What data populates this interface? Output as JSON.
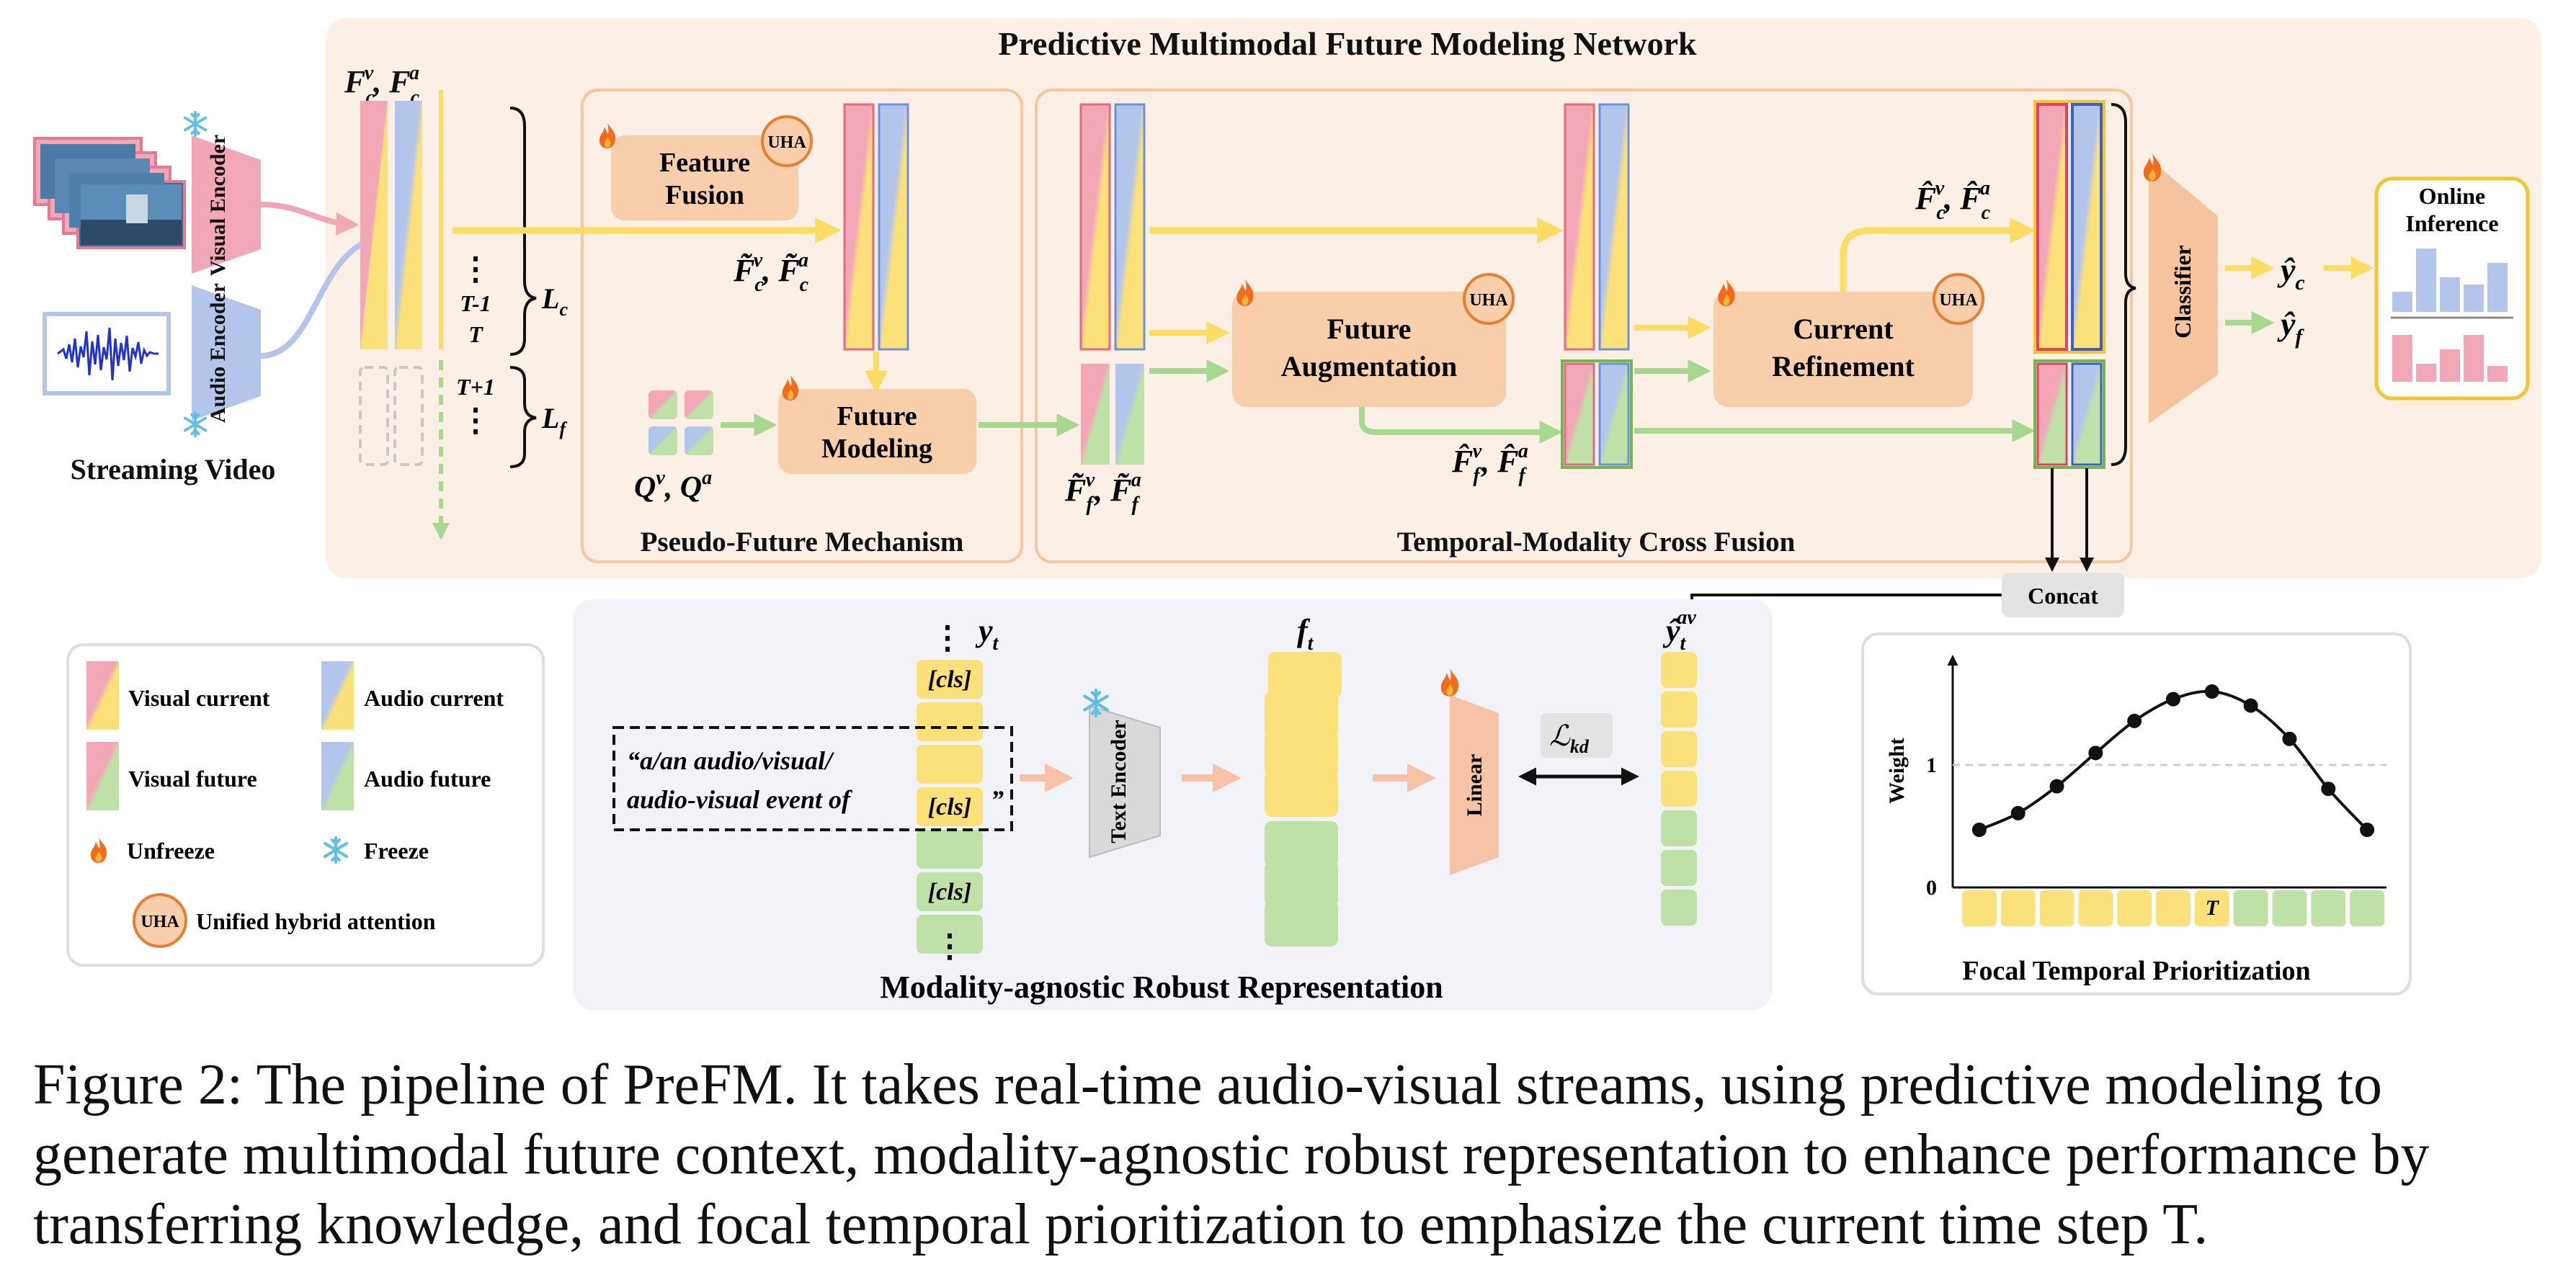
{
  "title": "Predictive Multimodal Future Modeling Network",
  "streaming_video_label": "Streaming Video",
  "visual_encoder_label": "Visual Encoder",
  "audio_encoder_label": "Audio Encoder",
  "feature_fusion_label": [
    "Feature",
    "Fusion"
  ],
  "future_modeling_label": [
    "Future",
    "Modeling"
  ],
  "future_augmentation_label": [
    "Future",
    "Augmentation"
  ],
  "current_refinement_label": [
    "Current",
    "Refinement"
  ],
  "uha_label": "UHA",
  "classifier_label": "Classifier",
  "online_inference_label": [
    "Online",
    "Inference"
  ],
  "pseudo_future_label": "Pseudo-Future Mechanism",
  "temporal_modality_label": "Temporal-Modality Cross Fusion",
  "concat_label": "Concat",
  "time_labels": {
    "t_minus_1": "T-1",
    "t": "T",
    "t_plus_1": "T+1"
  },
  "len_labels": {
    "lc": "L",
    "lc_sub": "c",
    "lf": "L",
    "lf_sub": "f"
  },
  "legend": {
    "visual_current": "Visual current",
    "audio_current": "Audio current",
    "visual_future": "Visual future",
    "audio_future": "Audio future",
    "unfreeze": "Unfreeze",
    "freeze": "Freeze",
    "uha": "Unified hybrid attention"
  },
  "mar": {
    "title": "Modality-agnostic Robust Representation",
    "cls_token": "[cls]",
    "prompt_lines": [
      "“a/an audio/visual/",
      "audio-visual event of",
      "”"
    ],
    "text_encoder": "Text Encoder",
    "linear": "Linear",
    "loss": "ℒ",
    "loss_sub": "kd"
  },
  "ftp": {
    "title": "Focal Temporal Prioritization",
    "ylabel": "Weight",
    "y_ticks": [
      "0",
      "1"
    ],
    "t_label": "T"
  },
  "caption": "Figure 2: The pipeline of PreFM. It takes real-time audio-visual streams, using predictive modeling to generate multimodal future context, modality-agnostic robust representation to enhance performance by transferring knowledge, and focal temporal prioritization to emphasize the current time step T.",
  "colors": {
    "panel_bg": "#fcefe5",
    "panel_border": "#f6c6a0",
    "module_fill": "#f8cfaa",
    "visual": "#f2a7b6",
    "audio": "#b4c5ec",
    "current": "#fce17a",
    "future": "#bfe0a7",
    "arrow_current": "#fcdc63",
    "arrow_future": "#a6d98e",
    "classifier": "#f6c39f"
  },
  "chart_data": {
    "type": "line",
    "title": "Focal Temporal Prioritization",
    "xlabel": "",
    "ylabel": "Weight",
    "x": [
      1,
      2,
      3,
      4,
      5,
      6,
      7,
      8,
      9,
      10,
      11
    ],
    "values": [
      0.45,
      0.58,
      0.79,
      1.05,
      1.3,
      1.47,
      1.53,
      1.42,
      1.16,
      0.77,
      0.45
    ],
    "ylim": [
      0,
      1.8
    ],
    "grid": false,
    "reference_line": 1,
    "timeline_segments": [
      "current",
      "current",
      "current",
      "current",
      "current",
      "current",
      "current",
      "future",
      "future",
      "future",
      "future"
    ],
    "current_step_index": 6
  }
}
